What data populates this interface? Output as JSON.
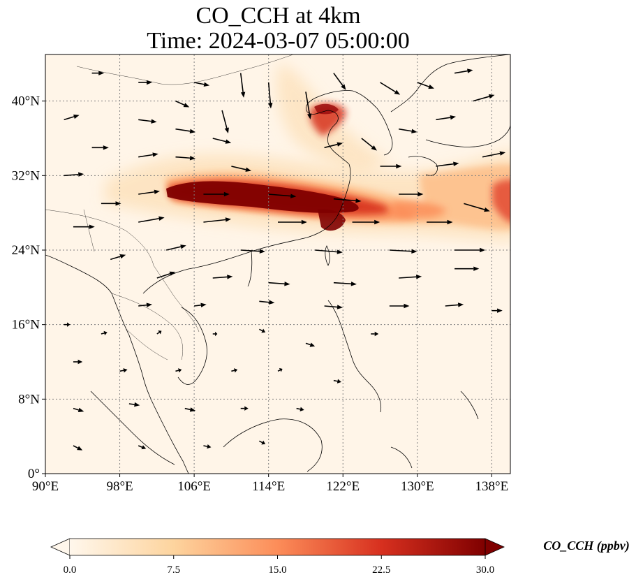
{
  "title_line1": "CO_CCH at 4km",
  "title_line2": "Time: 2024-03-07 05:00:00",
  "map": {
    "lon_range": [
      90,
      140
    ],
    "lat_range": [
      0,
      45
    ],
    "x_ticks": [
      {
        "value": 90,
        "label": "90°E"
      },
      {
        "value": 98,
        "label": "98°E"
      },
      {
        "value": 106,
        "label": "106°E"
      },
      {
        "value": 114,
        "label": "114°E"
      },
      {
        "value": 122,
        "label": "122°E"
      },
      {
        "value": 130,
        "label": "130°E"
      },
      {
        "value": 138,
        "label": "138°E"
      }
    ],
    "y_ticks": [
      {
        "value": 0,
        "label": "0°"
      },
      {
        "value": 8,
        "label": "8°N"
      },
      {
        "value": 16,
        "label": "16°N"
      },
      {
        "value": 24,
        "label": "24°N"
      },
      {
        "value": 32,
        "label": "32°N"
      },
      {
        "value": 40,
        "label": "40°N"
      }
    ],
    "gridlines": true,
    "colormap": "OrRd",
    "field_colors": [
      "#fff7ec",
      "#fdd49e",
      "#fc8d59",
      "#d7301f",
      "#7f0000"
    ],
    "coastline_color": "#000000",
    "vector_color": "#000000"
  },
  "colorbar": {
    "label": "CO_CCH (ppbv)",
    "range": [
      0,
      30
    ],
    "extend": "both",
    "ticks": [
      {
        "value": 0,
        "label": "0.0"
      },
      {
        "value": 7.5,
        "label": "7.5"
      },
      {
        "value": 15,
        "label": "15.0"
      },
      {
        "value": 22.5,
        "label": "22.5"
      },
      {
        "value": 30,
        "label": "30.0"
      }
    ]
  },
  "plume": {
    "description_points": [
      {
        "lon": 104,
        "lat": 30.5,
        "value": 30
      },
      {
        "lon": 110,
        "lat": 30,
        "value": 30
      },
      {
        "lon": 116,
        "lat": 29.5,
        "value": 30
      },
      {
        "lon": 120,
        "lat": 28.5,
        "value": 28
      },
      {
        "lon": 124,
        "lat": 28.5,
        "value": 20
      },
      {
        "lon": 120,
        "lat": 39.5,
        "value": 26
      },
      {
        "lon": 134,
        "lat": 30,
        "value": 14
      },
      {
        "lon": 139,
        "lat": 29,
        "value": 24
      }
    ]
  },
  "wind_vectors": [
    {
      "lon": 92,
      "lat": 38,
      "u": 2.0,
      "v": 0.6
    },
    {
      "lon": 95,
      "lat": 35,
      "u": 2.2,
      "v": 0.0
    },
    {
      "lon": 92,
      "lat": 32,
      "u": 2.6,
      "v": 0.2
    },
    {
      "lon": 96,
      "lat": 29,
      "u": 2.6,
      "v": 0.0
    },
    {
      "lon": 93,
      "lat": 26.5,
      "u": 2.8,
      "v": 0.0
    },
    {
      "lon": 100,
      "lat": 38,
      "u": 2.4,
      "v": -0.3
    },
    {
      "lon": 104,
      "lat": 37,
      "u": 2.6,
      "v": -0.4
    },
    {
      "lon": 108,
      "lat": 36,
      "u": 2.4,
      "v": -0.6
    },
    {
      "lon": 100,
      "lat": 34,
      "u": 2.6,
      "v": 0.4
    },
    {
      "lon": 104,
      "lat": 34,
      "u": 2.6,
      "v": -0.2
    },
    {
      "lon": 110,
      "lat": 33,
      "u": 2.6,
      "v": -0.6
    },
    {
      "lon": 100,
      "lat": 30,
      "u": 2.8,
      "v": 0.4
    },
    {
      "lon": 107,
      "lat": 30,
      "u": 3.4,
      "v": 0.0
    },
    {
      "lon": 114,
      "lat": 30,
      "u": 3.6,
      "v": -0.3
    },
    {
      "lon": 121,
      "lat": 29.5,
      "u": 3.6,
      "v": -0.3
    },
    {
      "lon": 100,
      "lat": 27,
      "u": 3.4,
      "v": 0.6
    },
    {
      "lon": 107,
      "lat": 27,
      "u": 3.6,
      "v": 0.4
    },
    {
      "lon": 115,
      "lat": 27,
      "u": 3.8,
      "v": 0.0
    },
    {
      "lon": 123,
      "lat": 27,
      "u": 3.6,
      "v": 0.0
    },
    {
      "lon": 131,
      "lat": 27,
      "u": 3.4,
      "v": 0.0
    },
    {
      "lon": 134,
      "lat": 24,
      "u": 4.0,
      "v": 0.0
    },
    {
      "lon": 127,
      "lat": 24,
      "u": 3.6,
      "v": -0.2
    },
    {
      "lon": 119,
      "lat": 24,
      "u": 3.6,
      "v": -0.3
    },
    {
      "lon": 111,
      "lat": 24,
      "u": 3.2,
      "v": -0.2
    },
    {
      "lon": 103,
      "lat": 24,
      "u": 2.6,
      "v": 0.6
    },
    {
      "lon": 97,
      "lat": 23,
      "u": 2.0,
      "v": 0.6
    },
    {
      "lon": 102,
      "lat": 21,
      "u": 2.4,
      "v": 0.8
    },
    {
      "lon": 108,
      "lat": 21,
      "u": 2.6,
      "v": 0.2
    },
    {
      "lon": 114,
      "lat": 20.5,
      "u": 2.8,
      "v": -0.2
    },
    {
      "lon": 121,
      "lat": 20.5,
      "u": 3.0,
      "v": -0.2
    },
    {
      "lon": 128,
      "lat": 21,
      "u": 3.0,
      "v": 0.2
    },
    {
      "lon": 134,
      "lat": 22,
      "u": 3.2,
      "v": 0.0
    },
    {
      "lon": 100,
      "lat": 18,
      "u": 1.8,
      "v": 0.2
    },
    {
      "lon": 106,
      "lat": 18,
      "u": 1.6,
      "v": 0.2
    },
    {
      "lon": 113,
      "lat": 18.5,
      "u": 2.0,
      "v": -0.2
    },
    {
      "lon": 120,
      "lat": 18,
      "u": 2.4,
      "v": -0.2
    },
    {
      "lon": 127,
      "lat": 18,
      "u": 2.6,
      "v": 0.0
    },
    {
      "lon": 133,
      "lat": 18,
      "u": 2.4,
      "v": 0.2
    },
    {
      "lon": 138,
      "lat": 17.5,
      "u": 1.4,
      "v": 0.0
    },
    {
      "lon": 92,
      "lat": 16,
      "u": 0.8,
      "v": 0.0
    },
    {
      "lon": 96,
      "lat": 15,
      "u": 0.8,
      "v": 0.2
    },
    {
      "lon": 102,
      "lat": 15,
      "u": 0.6,
      "v": 0.4
    },
    {
      "lon": 108,
      "lat": 15,
      "u": 0.6,
      "v": 0.0
    },
    {
      "lon": 113,
      "lat": 15.5,
      "u": 0.8,
      "v": -0.4
    },
    {
      "lon": 118,
      "lat": 14,
      "u": 1.2,
      "v": -0.4
    },
    {
      "lon": 125,
      "lat": 15,
      "u": 1.0,
      "v": 0.0
    },
    {
      "lon": 93,
      "lat": 12,
      "u": 1.2,
      "v": 0.0
    },
    {
      "lon": 98,
      "lat": 11,
      "u": 1.0,
      "v": 0.2
    },
    {
      "lon": 104,
      "lat": 11,
      "u": 0.8,
      "v": 0.2
    },
    {
      "lon": 110,
      "lat": 11,
      "u": 0.8,
      "v": 0.2
    },
    {
      "lon": 115,
      "lat": 11,
      "u": 0.6,
      "v": 0.3
    },
    {
      "lon": 121,
      "lat": 10,
      "u": 1.0,
      "v": -0.2
    },
    {
      "lon": 93,
      "lat": 7,
      "u": 1.4,
      "v": -0.4
    },
    {
      "lon": 99,
      "lat": 7.5,
      "u": 1.4,
      "v": -0.2
    },
    {
      "lon": 105,
      "lat": 7,
      "u": 1.4,
      "v": -0.3
    },
    {
      "lon": 111,
      "lat": 7,
      "u": 1.0,
      "v": 0.0
    },
    {
      "lon": 117,
      "lat": 7,
      "u": 1.0,
      "v": -0.2
    },
    {
      "lon": 93,
      "lat": 3,
      "u": 1.2,
      "v": -0.6
    },
    {
      "lon": 100,
      "lat": 3,
      "u": 1.0,
      "v": -0.4
    },
    {
      "lon": 107,
      "lat": 3,
      "u": 1.0,
      "v": -0.2
    },
    {
      "lon": 113,
      "lat": 3.5,
      "u": 0.8,
      "v": -0.4
    },
    {
      "lon": 95,
      "lat": 43,
      "u": 1.6,
      "v": 0.0
    },
    {
      "lon": 100,
      "lat": 42,
      "u": 1.8,
      "v": 0.0
    },
    {
      "lon": 106,
      "lat": 42,
      "u": 2.0,
      "v": -0.4
    },
    {
      "lon": 111,
      "lat": 43,
      "u": 0.4,
      "v": -3.2
    },
    {
      "lon": 114,
      "lat": 42,
      "u": 0.3,
      "v": -3.4
    },
    {
      "lon": 118,
      "lat": 41,
      "u": 0.6,
      "v": -3.6
    },
    {
      "lon": 121,
      "lat": 43,
      "u": 1.6,
      "v": -2.2
    },
    {
      "lon": 126,
      "lat": 42,
      "u": 2.6,
      "v": -1.6
    },
    {
      "lon": 130,
      "lat": 42,
      "u": 2.2,
      "v": -0.8
    },
    {
      "lon": 134,
      "lat": 43,
      "u": 2.4,
      "v": 0.4
    },
    {
      "lon": 136,
      "lat": 40,
      "u": 2.8,
      "v": 0.8
    },
    {
      "lon": 132,
      "lat": 38,
      "u": 2.6,
      "v": 0.4
    },
    {
      "lon": 128,
      "lat": 37,
      "u": 2.4,
      "v": -0.4
    },
    {
      "lon": 124,
      "lat": 36,
      "u": 2.0,
      "v": -1.6
    },
    {
      "lon": 120,
      "lat": 35,
      "u": 2.4,
      "v": 0.6
    },
    {
      "lon": 126,
      "lat": 33,
      "u": 2.8,
      "v": 0.0
    },
    {
      "lon": 132,
      "lat": 33,
      "u": 3.0,
      "v": 0.4
    },
    {
      "lon": 137,
      "lat": 34,
      "u": 3.0,
      "v": 0.6
    },
    {
      "lon": 128,
      "lat": 30,
      "u": 3.2,
      "v": 0.0
    },
    {
      "lon": 135,
      "lat": 29,
      "u": 3.4,
      "v": -1.0
    },
    {
      "lon": 109,
      "lat": 39,
      "u": 0.8,
      "v": -3.0
    },
    {
      "lon": 104,
      "lat": 40,
      "u": 1.8,
      "v": -0.8
    }
  ]
}
